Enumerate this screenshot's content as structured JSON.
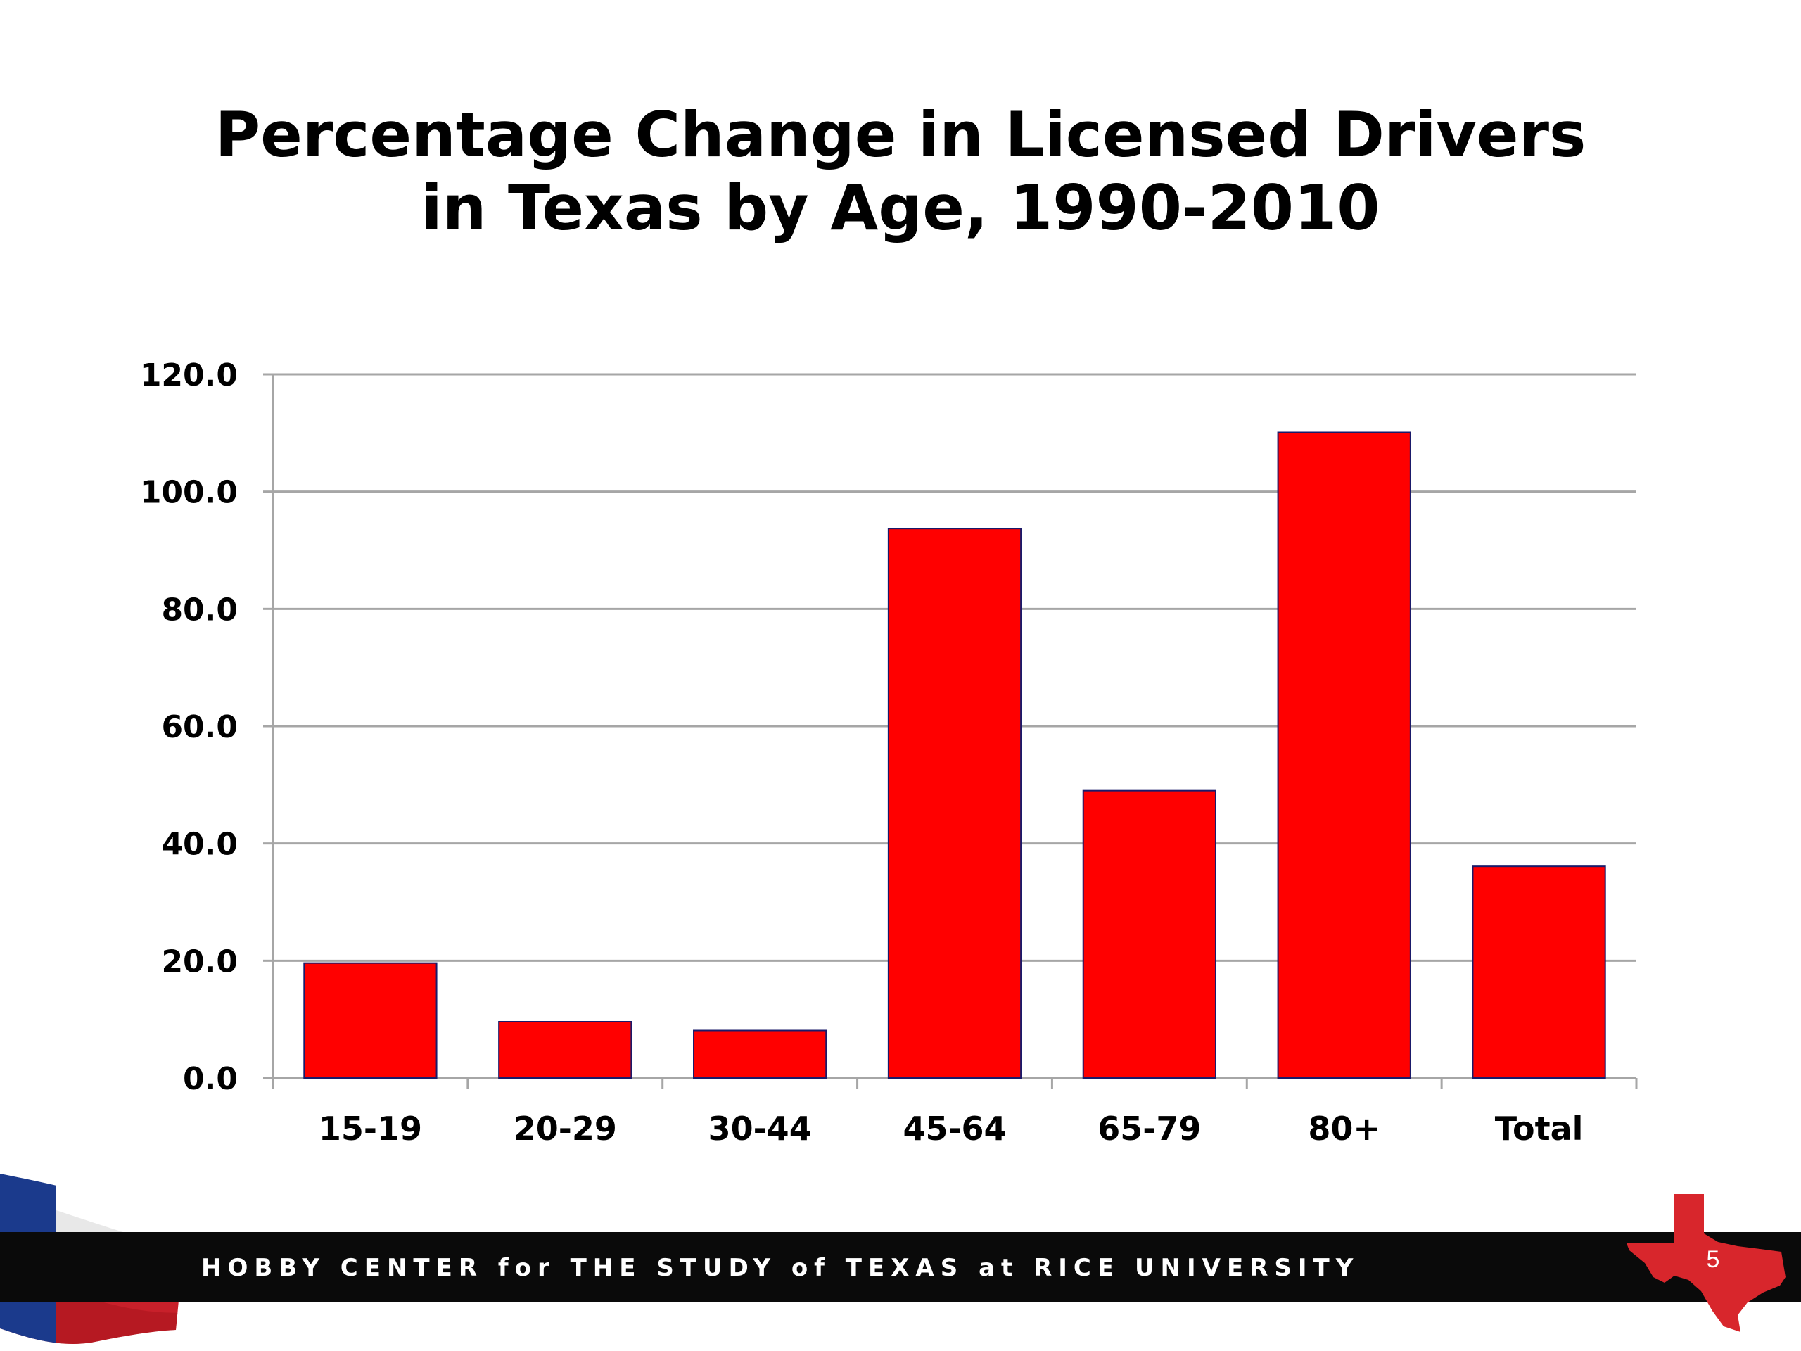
{
  "slide": {
    "title_lines": [
      "Percentage Change in Licensed Drivers",
      "in Texas by Age, 1990-2010"
    ],
    "footer_text": "HOBBY CENTER for THE STUDY of TEXAS at RICE UNIVERSITY",
    "slide_number": "5"
  },
  "colors": {
    "bar_fill": "#ff0000",
    "bar_stroke": "#1a1a6a",
    "grid": "#a6a6a6",
    "footer_bar": "#0a0a0a",
    "texas_shape": "#d8262c"
  },
  "icons": {
    "logo": "texas-flag-icon",
    "state": "texas-state-icon"
  },
  "chart_data": {
    "type": "bar",
    "title": "Percentage Change in Licensed Drivers in Texas by Age, 1990-2010",
    "categories": [
      "15-19",
      "20-29",
      "30-44",
      "45-64",
      "65-79",
      "80+",
      "Total"
    ],
    "values": [
      19.6,
      9.6,
      8.1,
      93.7,
      49.0,
      110.1,
      36.1
    ],
    "ylim": [
      0,
      120
    ],
    "yticks": [
      0,
      20,
      40,
      60,
      80,
      100,
      120
    ],
    "ytick_labels": [
      "0.0",
      "20.0",
      "40.0",
      "60.0",
      "80.0",
      "100.0",
      "120.0"
    ],
    "xlabel": "",
    "ylabel": "",
    "grid": true,
    "legend": false
  }
}
